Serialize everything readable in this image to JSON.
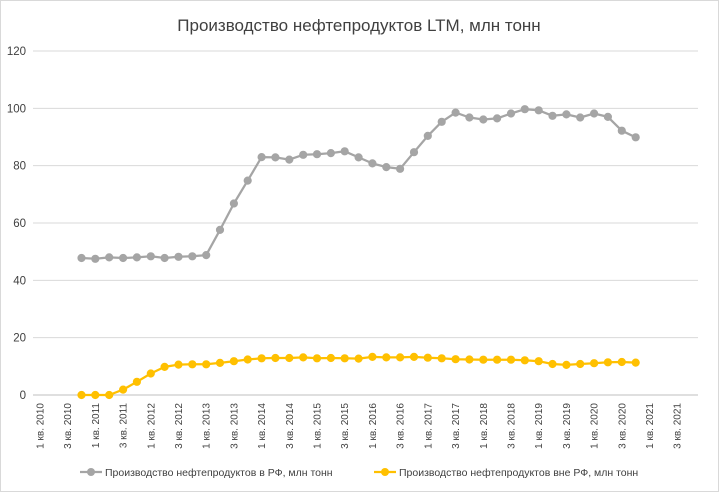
{
  "chart_data": {
    "type": "line",
    "title": "Производство нефтепродуктов LTM, млн тонн",
    "xlabel": "",
    "ylabel": "",
    "ylim": [
      0,
      120
    ],
    "yticks": [
      0,
      20,
      40,
      60,
      80,
      100,
      120
    ],
    "grid": "horizontal",
    "legend": "bottom",
    "x_tick_labels": [
      "1 кв. 2010",
      "3 кв. 2010",
      "1 кв. 2011",
      "3 кв. 2011",
      "1 кв. 2012",
      "3 кв. 2012",
      "1 кв. 2013",
      "3 кв. 2013",
      "1 кв. 2014",
      "3 кв. 2014",
      "1 кв. 2015",
      "3 кв. 2015",
      "1 кв. 2016",
      "3 кв. 2016",
      "1 кв. 2017",
      "3 кв. 2017",
      "1 кв. 2018",
      "3 кв. 2018",
      "1 кв. 2019",
      "3 кв. 2019",
      "1 кв. 2020",
      "3 кв. 2020",
      "1 кв. 2021",
      "3 кв. 2021"
    ],
    "x_start": "4 кв. 2010",
    "series": [
      {
        "name": "Производство нефтепродуктов в РФ, млн тонн",
        "color": "#a5a5a5",
        "values": [
          47.8,
          47.5,
          48.0,
          47.8,
          48.0,
          48.4,
          47.8,
          48.2,
          48.4,
          48.8,
          57.6,
          66.8,
          74.8,
          83.0,
          82.9,
          82.1,
          83.8,
          84.0,
          84.4,
          85.0,
          82.9,
          80.8,
          79.5,
          78.9,
          84.7,
          90.4,
          95.3,
          98.5,
          96.8,
          96.1,
          96.5,
          98.2,
          99.7,
          99.3,
          97.4,
          97.9,
          96.8,
          98.2,
          97.0,
          92.2,
          89.9
        ]
      },
      {
        "name": "Производство нефтепродуктов вне РФ, млн тонн",
        "color": "#ffc000",
        "values": [
          0.0,
          0.0,
          0.0,
          1.9,
          4.6,
          7.5,
          9.8,
          10.6,
          10.7,
          10.7,
          11.2,
          11.8,
          12.4,
          12.8,
          12.9,
          12.9,
          13.1,
          12.8,
          12.9,
          12.8,
          12.7,
          13.3,
          13.1,
          13.1,
          13.3,
          13.0,
          12.8,
          12.5,
          12.4,
          12.3,
          12.3,
          12.3,
          12.1,
          11.8,
          10.8,
          10.5,
          10.8,
          11.1,
          11.4,
          11.5,
          11.3
        ]
      }
    ]
  }
}
